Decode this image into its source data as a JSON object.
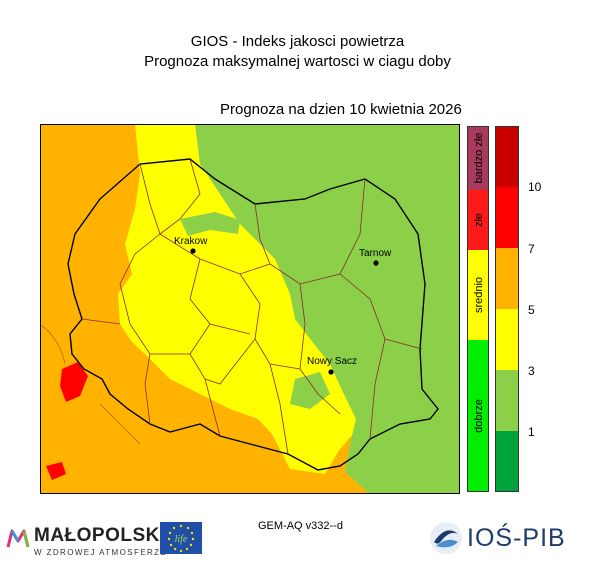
{
  "header": {
    "title_line1": "GIOS - Indeks jakosci powietrza",
    "title_line2": "Prognoza maksymalnej wartosci w ciagu doby",
    "forecast_label": "Prognoza na dzien  10 kwietnia 2026"
  },
  "map": {
    "cities": [
      {
        "name": "Krakow"
      },
      {
        "name": "Tarnow"
      },
      {
        "name": "Nowy Sacz"
      }
    ]
  },
  "legend": {
    "categories": [
      {
        "label": "bardzo złe",
        "color": "#a83a5e"
      },
      {
        "label": "złe",
        "color": "#ff1a1a"
      },
      {
        "label": "srednio",
        "color": "#ffff00"
      },
      {
        "label": "dobrze",
        "color": "#00ee00"
      }
    ],
    "scale_colors": [
      "#c80000",
      "#ff0000",
      "#ffb300",
      "#ffff00",
      "#8cd04a",
      "#00a23a"
    ],
    "ticks": [
      "10",
      "7",
      "5",
      "3",
      "1"
    ]
  },
  "footer": {
    "model_label": "GEM-AQ v332--d",
    "logo_malopolska_main": "MAŁOPOLSKA",
    "logo_malopolska_sub": "W ZDROWEJ ATMOSFERZE",
    "logo_life": "life",
    "logo_ios": "IOŚ-PIB"
  }
}
